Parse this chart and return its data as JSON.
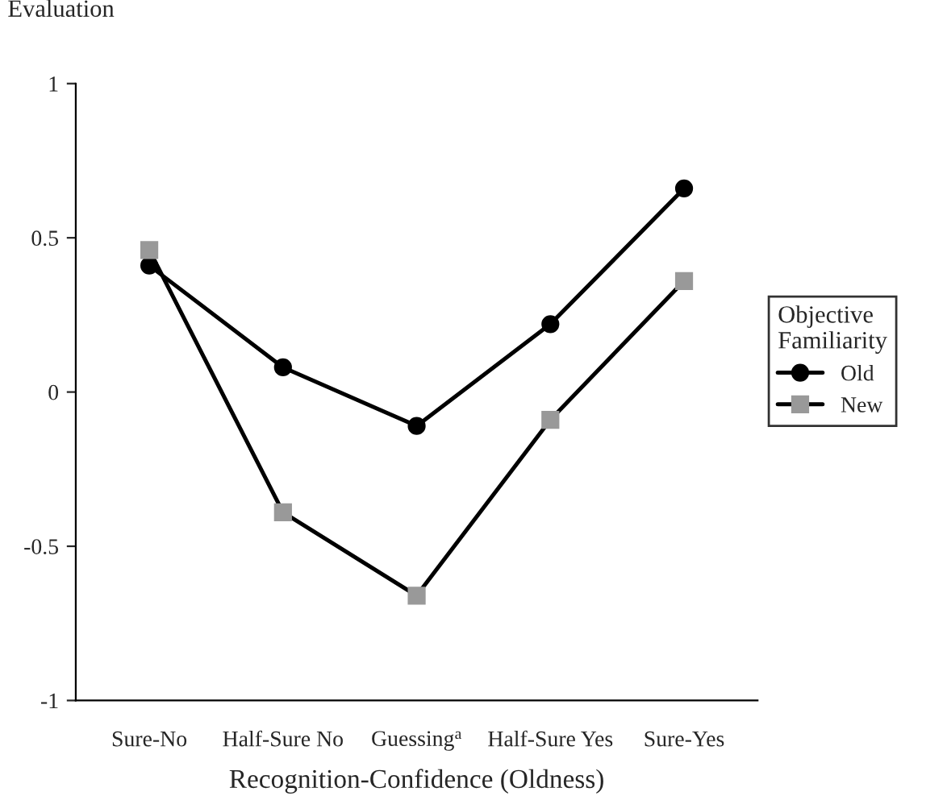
{
  "chart_data": {
    "type": "line",
    "ylabel": "Evaluation",
    "xlabel": "Recognition-Confidence (Oldness)",
    "legend_title": "Objective\nFamiliarity",
    "categories": [
      "Sure-No",
      "Half-Sure No",
      "Guessing$^{a}$",
      "Half-Sure Yes",
      "Sure-Yes"
    ],
    "series": [
      {
        "name": "Old",
        "color": "#000000",
        "marker": "circle",
        "values": [
          0.41,
          0.08,
          -0.11,
          0.22,
          0.66
        ]
      },
      {
        "name": "New",
        "color": "#999999",
        "marker": "square",
        "values": [
          0.46,
          -0.39,
          -0.66,
          -0.09,
          0.36
        ]
      }
    ],
    "ylim": [
      -1,
      1
    ],
    "yticks": [
      {
        "value": -1,
        "label": "-1"
      },
      {
        "value": -0.5,
        "label": "-0.5"
      },
      0,
      0.5,
      1
    ],
    "grid": false,
    "legend": "right",
    "line_style": "solid"
  }
}
